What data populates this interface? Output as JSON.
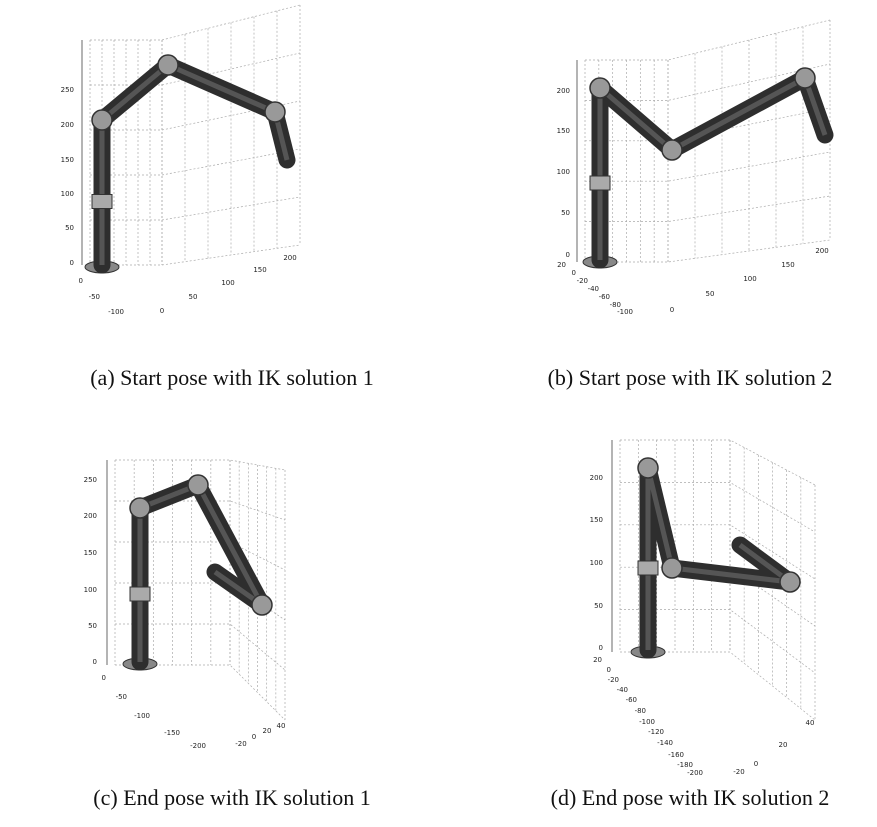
{
  "panels": [
    {
      "caption": "(a)  Start pose with IK solution 1",
      "z_ticks": [
        250,
        200,
        150,
        100,
        50,
        0
      ],
      "x_ticks": [
        0,
        -50,
        -100
      ],
      "y_ticks": [
        0,
        50,
        100,
        150,
        200
      ]
    },
    {
      "caption": "(b)  Start pose with IK solution 2",
      "z_ticks": [
        200,
        150,
        100,
        50,
        0
      ],
      "x_ticks": [
        20,
        0,
        -20,
        -40,
        -60,
        -80,
        -100
      ],
      "y_ticks": [
        0,
        50,
        100,
        150,
        200
      ]
    },
    {
      "caption": "(c)  End pose with IK solution 1",
      "z_ticks": [
        250,
        200,
        150,
        100,
        50,
        0
      ],
      "x_ticks": [
        0,
        -50,
        -100,
        -150,
        -200
      ],
      "y_ticks": [
        -20,
        0,
        20,
        40
      ]
    },
    {
      "caption": "(d)  End pose with IK solution 2",
      "z_ticks": [
        200,
        150,
        100,
        50,
        0
      ],
      "x_ticks": [
        20,
        0,
        -20,
        -40,
        -60,
        -80,
        -100,
        -120,
        -140,
        -160,
        -180,
        -200
      ],
      "y_ticks": [
        -20,
        0,
        20,
        40
      ]
    }
  ]
}
